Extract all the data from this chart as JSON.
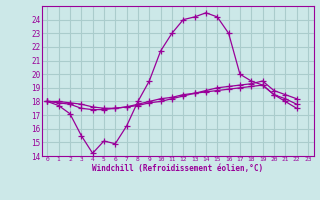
{
  "xlabel": "Windchill (Refroidissement éolien,°C)",
  "xlim": [
    -0.5,
    23.5
  ],
  "ylim": [
    14,
    25
  ],
  "yticks": [
    14,
    15,
    16,
    17,
    18,
    19,
    20,
    21,
    22,
    23,
    24
  ],
  "xticks": [
    0,
    1,
    2,
    3,
    4,
    5,
    6,
    7,
    8,
    9,
    10,
    11,
    12,
    13,
    14,
    15,
    16,
    17,
    18,
    19,
    20,
    21,
    22,
    23
  ],
  "bg_color": "#cce8e8",
  "line_color": "#990099",
  "grid_color": "#aacccc",
  "series": [
    [
      18.0,
      17.7,
      17.1,
      15.5,
      14.2,
      15.1,
      14.9,
      16.2,
      18.0,
      19.5,
      21.7,
      23.0,
      24.0,
      24.2,
      24.5,
      24.2,
      23.0,
      20.0,
      19.5,
      19.2,
      18.5,
      18.0,
      17.5
    ],
    [
      18.0,
      17.9,
      17.8,
      17.5,
      17.4,
      17.4,
      17.5,
      17.6,
      17.8,
      18.0,
      18.2,
      18.3,
      18.5,
      18.6,
      18.7,
      18.8,
      18.9,
      19.0,
      19.1,
      19.2,
      18.5,
      18.2,
      17.8
    ],
    [
      18.0,
      18.0,
      17.9,
      17.8,
      17.6,
      17.5,
      17.5,
      17.6,
      17.7,
      17.9,
      18.0,
      18.2,
      18.4,
      18.6,
      18.8,
      19.0,
      19.1,
      19.2,
      19.3,
      19.5,
      18.8,
      18.5,
      18.2
    ]
  ]
}
